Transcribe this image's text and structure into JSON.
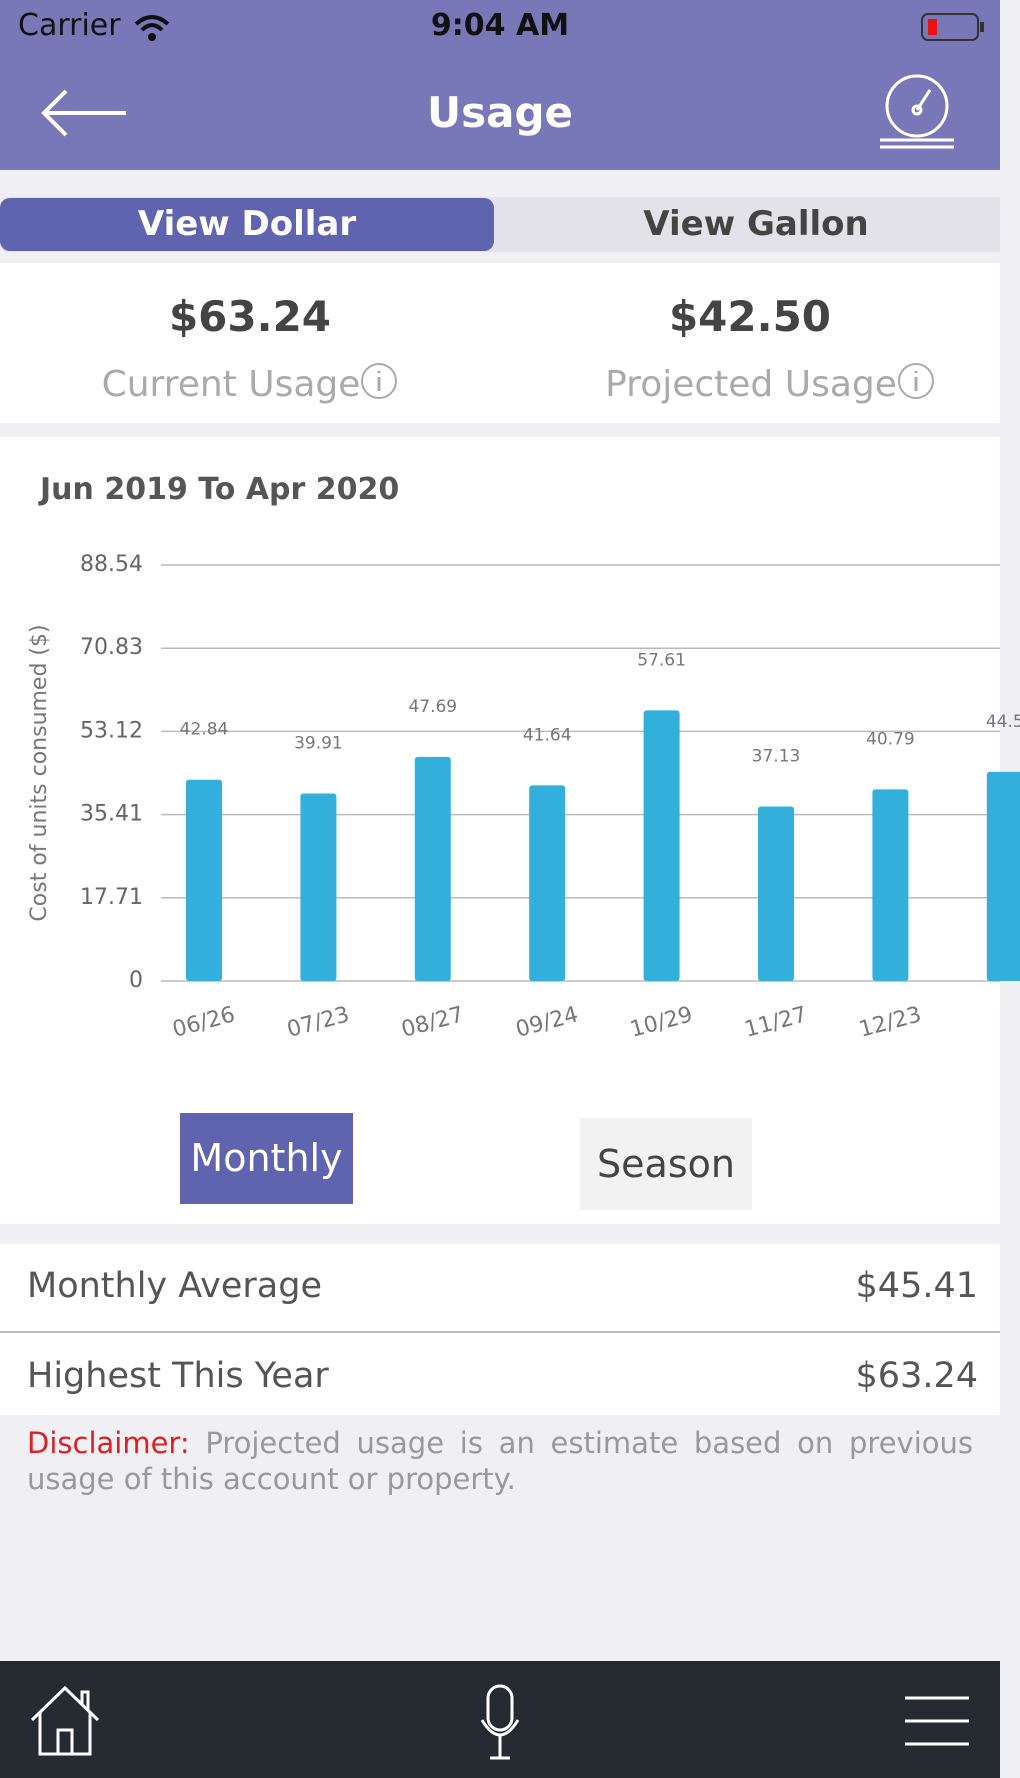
{
  "status_bar": {
    "carrier": "Carrier",
    "time": "9:04 AM"
  },
  "header": {
    "title": "Usage"
  },
  "tabs": [
    "View Dollar",
    "View Gallon"
  ],
  "summary": [
    {
      "amount": "$63.24",
      "label": "Current Usage"
    },
    {
      "amount": "$42.50",
      "label": "Projected Usage"
    }
  ],
  "chart_data": {
    "type": "bar",
    "title": "Jun 2019 To Apr 2020",
    "y_label": "Cost of units consumed ($)",
    "categories": [
      "06/26",
      "07/23",
      "08/27",
      "09/24",
      "10/29",
      "11/27",
      "12/23",
      null
    ],
    "values": [
      42.84,
      39.91,
      47.69,
      41.64,
      57.61,
      37.13,
      40.79,
      44.5
    ],
    "color": "#33afdc",
    "ylim": [
      0,
      88.54
    ],
    "yticks": [
      0,
      17.71,
      35.41,
      53.12,
      70.83,
      88.54
    ],
    "grid": true
  },
  "period_buttons": [
    "Monthly",
    "Season"
  ],
  "stats": [
    {
      "label": "Monthly Average",
      "value": "$45.41"
    },
    {
      "label": "Highest This Year",
      "value": "$63.24"
    }
  ],
  "disclaimer": {
    "label": "Disclaimer:",
    "text": "Projected usage is an estimate based on previous usage of this account or property."
  }
}
